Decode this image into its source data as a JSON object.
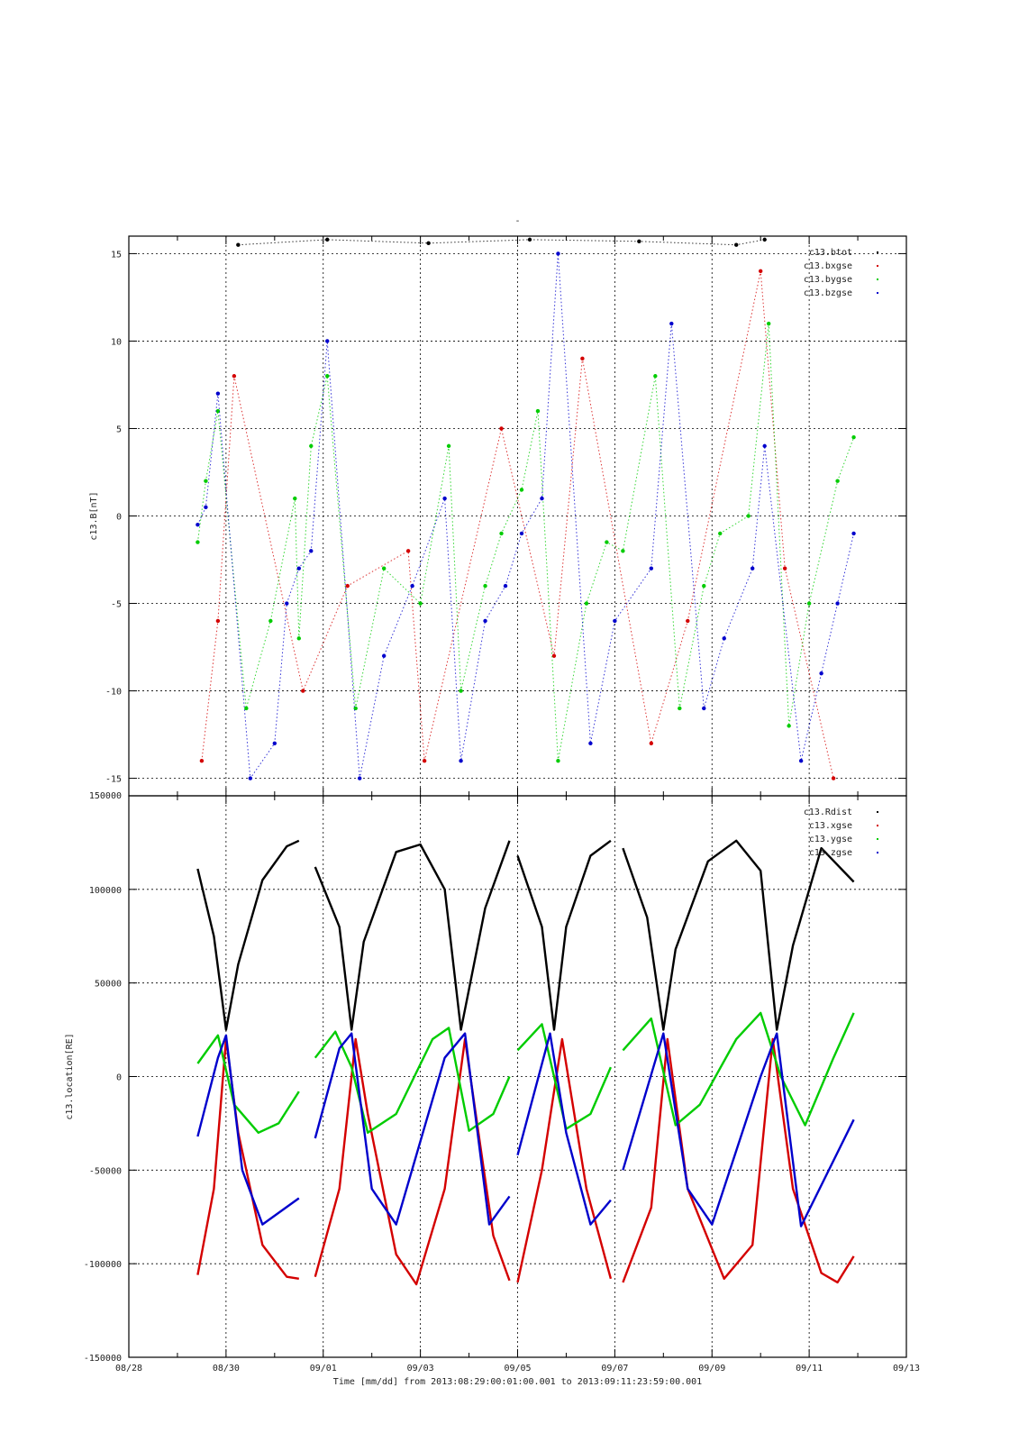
{
  "chart_data": [
    {
      "type": "scatter",
      "title": "-",
      "ylabel": "c13.B[nT]",
      "xlim": [
        "2013-08-28",
        "2013-09-13"
      ],
      "ylim": [
        -16,
        16
      ],
      "y_ticks": [
        15,
        10,
        5,
        0,
        -5,
        -10,
        -15
      ],
      "y_tick_labels": [
        "15",
        "10",
        "5",
        "0",
        "-5",
        "-10",
        "-15"
      ],
      "grid": true,
      "legend_position": "top-right",
      "colors": {
        "btot": "#000000",
        "bxgse": "#d40000",
        "bygse": "#00cc00",
        "bzgse": "#0000cc"
      },
      "series": [
        {
          "name": "c13.btot",
          "color": "#000000",
          "x": [
            "2013-08-30T06:00",
            "2013-09-01T02:00",
            "2013-09-03T04:00",
            "2013-09-05T06:00",
            "2013-09-07T12:00",
            "2013-09-09T12:00",
            "2013-09-10T02:00"
          ],
          "y": [
            15.5,
            15.8,
            15.6,
            15.8,
            15.7,
            15.5,
            15.8
          ]
        },
        {
          "name": "c13.bxgse",
          "color": "#d40000",
          "x": [
            "2013-08-29T12:00",
            "2013-08-29T20:00",
            "2013-08-30T04:00",
            "2013-08-31T14:00",
            "2013-09-01T12:00",
            "2013-09-02T18:00",
            "2013-09-03T02:00",
            "2013-09-04T16:00",
            "2013-09-05T18:00",
            "2013-09-06T08:00",
            "2013-09-07T18:00",
            "2013-09-08T12:00",
            "2013-09-10T00:00",
            "2013-09-10T12:00",
            "2013-09-11T12:00"
          ],
          "y": [
            -14,
            -6,
            8,
            -10,
            -4,
            -2,
            -14,
            5,
            -8,
            9,
            -13,
            -6,
            14,
            -3,
            -15
          ]
        },
        {
          "name": "c13.bygse",
          "color": "#00cc00",
          "x": [
            "2013-08-29T10:00",
            "2013-08-29T14:00",
            "2013-08-29T20:00",
            "2013-08-30T10:00",
            "2013-08-30T22:00",
            "2013-08-31T10:00",
            "2013-08-31T12:00",
            "2013-08-31T18:00",
            "2013-09-01T02:00",
            "2013-09-01T16:00",
            "2013-09-02T06:00",
            "2013-09-03T00:00",
            "2013-09-03T14:00",
            "2013-09-03T20:00",
            "2013-09-04T08:00",
            "2013-09-04T16:00",
            "2013-09-05T02:00",
            "2013-09-05T10:00",
            "2013-09-05T20:00",
            "2013-09-06T10:00",
            "2013-09-06T20:00",
            "2013-09-07T04:00",
            "2013-09-07T20:00",
            "2013-09-08T08:00",
            "2013-09-08T20:00",
            "2013-09-09T04:00",
            "2013-09-09T18:00",
            "2013-09-10T04:00",
            "2013-09-10T14:00",
            "2013-09-11T00:00",
            "2013-09-11T14:00",
            "2013-09-11T22:00"
          ],
          "y": [
            -1.5,
            2,
            6,
            -11,
            -6,
            1,
            -7,
            4,
            8,
            -11,
            -3,
            -5,
            4,
            -10,
            -4,
            -1,
            1.5,
            6,
            -14,
            -5,
            -1.5,
            -2,
            8,
            -11,
            -4,
            -1,
            0,
            11,
            -12,
            -5,
            2,
            4.5
          ]
        },
        {
          "name": "c13.bzgse",
          "color": "#0000cc",
          "x": [
            "2013-08-29T10:00",
            "2013-08-29T14:00",
            "2013-08-29T20:00",
            "2013-08-30T12:00",
            "2013-08-31T00:00",
            "2013-08-31T06:00",
            "2013-08-31T12:00",
            "2013-08-31T18:00",
            "2013-09-01T02:00",
            "2013-09-01T18:00",
            "2013-09-02T06:00",
            "2013-09-02T20:00",
            "2013-09-03T12:00",
            "2013-09-03T20:00",
            "2013-09-04T08:00",
            "2013-09-04T18:00",
            "2013-09-05T02:00",
            "2013-09-05T12:00",
            "2013-09-05T20:00",
            "2013-09-06T12:00",
            "2013-09-07T00:00",
            "2013-09-07T18:00",
            "2013-09-08T04:00",
            "2013-09-08T20:00",
            "2013-09-09T06:00",
            "2013-09-09T20:00",
            "2013-09-10T02:00",
            "2013-09-10T20:00",
            "2013-09-11T06:00",
            "2013-09-11T14:00",
            "2013-09-11T22:00"
          ],
          "y": [
            -0.5,
            0.5,
            7,
            -15,
            -13,
            -5,
            -3,
            -2,
            10,
            -15,
            -8,
            -4,
            1,
            -14,
            -6,
            -4,
            -1,
            1,
            15,
            -13,
            -6,
            -3,
            11,
            -11,
            -7,
            -3,
            4,
            -14,
            -9,
            -5,
            -1
          ]
        }
      ]
    },
    {
      "type": "line",
      "ylabel": "c13.location[RE]",
      "xlabel": "Time [mm/dd]  from 2013:08:29:00:01:00.001  to  2013:09:11:23:59:00.001",
      "xlim": [
        "2013-08-28",
        "2013-09-13"
      ],
      "ylim": [
        -150000,
        150000
      ],
      "x_ticks": [
        "2013-08-28",
        "2013-08-30",
        "2013-09-01",
        "2013-09-03",
        "2013-09-05",
        "2013-09-07",
        "2013-09-09",
        "2013-09-11",
        "2013-09-13"
      ],
      "x_tick_labels": [
        "08/28",
        "08/30",
        "09/01",
        "09/03",
        "09/05",
        "09/07",
        "09/09",
        "09/11",
        "09/13"
      ],
      "y_ticks": [
        150000,
        100000,
        50000,
        0,
        -50000,
        -100000,
        -150000
      ],
      "y_tick_labels": [
        "150000",
        "100000",
        "50000",
        "0",
        "-50000",
        "-100000",
        "-150000"
      ],
      "grid": true,
      "legend_position": "top-right",
      "colors": {
        "Rdist": "#000000",
        "xgse": "#d40000",
        "ygse": "#00cc00",
        "zgse": "#0000cc"
      },
      "series": [
        {
          "name": "c13.Rdist",
          "color": "#000000",
          "x": [
            "2013-08-29T10:00",
            "2013-08-29T18:00",
            "2013-08-30T00:00",
            "2013-08-30T06:00",
            "2013-08-30T18:00",
            "2013-08-31T06:00",
            "2013-08-31T12:00",
            null,
            "2013-08-31T20:00",
            "2013-09-01T08:00",
            "2013-09-01T14:00",
            "2013-09-01T20:00",
            "2013-09-02T12:00",
            "2013-09-03T00:00",
            "2013-09-03T12:00",
            "2013-09-03T20:00",
            "2013-09-04T08:00",
            "2013-09-04T20:00",
            null,
            "2013-09-05T00:00",
            "2013-09-05T12:00",
            "2013-09-05T18:00",
            "2013-09-06T00:00",
            "2013-09-06T12:00",
            "2013-09-06T22:00",
            null,
            "2013-09-07T04:00",
            "2013-09-07T16:00",
            "2013-09-08T00:00",
            "2013-09-08T06:00",
            "2013-09-08T22:00",
            "2013-09-09T12:00",
            "2013-09-10T00:00",
            "2013-09-10T08:00",
            "2013-09-10T16:00",
            "2013-09-11T06:00",
            "2013-09-11T22:00"
          ],
          "y": [
            111000,
            75000,
            25000,
            60000,
            105000,
            123000,
            126000,
            null,
            112000,
            80000,
            25000,
            72000,
            120000,
            124000,
            100000,
            25000,
            90000,
            126000,
            null,
            118000,
            80000,
            25000,
            80000,
            118000,
            126000,
            null,
            122000,
            85000,
            25000,
            68000,
            115000,
            126000,
            110000,
            25000,
            70000,
            122000,
            104000
          ]
        },
        {
          "name": "c13.xgse",
          "color": "#d40000",
          "x": [
            "2013-08-29T10:00",
            "2013-08-29T18:00",
            "2013-08-30T00:00",
            "2013-08-30T06:00",
            "2013-08-30T18:00",
            "2013-08-31T06:00",
            "2013-08-31T12:00",
            null,
            "2013-08-31T20:00",
            "2013-09-01T08:00",
            "2013-09-01T16:00",
            "2013-09-01T22:00",
            "2013-09-02T12:00",
            "2013-09-02T22:00",
            "2013-09-03T12:00",
            "2013-09-03T22:00",
            "2013-09-04T12:00",
            "2013-09-04T20:00",
            null,
            "2013-09-05T00:00",
            "2013-09-05T12:00",
            "2013-09-05T22:00",
            "2013-09-06T10:00",
            "2013-09-06T22:00",
            null,
            "2013-09-07T04:00",
            "2013-09-07T18:00",
            "2013-09-08T02:00",
            "2013-09-08T12:00",
            "2013-09-09T06:00",
            "2013-09-09T20:00",
            "2013-09-10T06:00",
            "2013-09-10T16:00",
            "2013-09-11T06:00",
            "2013-09-11T14:00",
            "2013-09-11T22:00"
          ],
          "y": [
            -106000,
            -60000,
            20000,
            -30000,
            -90000,
            -107000,
            -108000,
            null,
            -107000,
            -60000,
            20000,
            -20000,
            -95000,
            -111000,
            -60000,
            20000,
            -85000,
            -109000,
            null,
            -110000,
            -50000,
            20000,
            -60000,
            -108000,
            null,
            -110000,
            -70000,
            20000,
            -60000,
            -108000,
            -90000,
            20000,
            -60000,
            -105000,
            -110000,
            -96000
          ]
        },
        {
          "name": "c13.ygse",
          "color": "#00cc00",
          "x": [
            "2013-08-29T10:00",
            "2013-08-29T20:00",
            "2013-08-30T04:00",
            "2013-08-30T16:00",
            "2013-08-31T02:00",
            "2013-08-31T12:00",
            null,
            "2013-08-31T20:00",
            "2013-09-01T06:00",
            "2013-09-01T14:00",
            "2013-09-01T22:00",
            "2013-09-02T12:00",
            "2013-09-03T06:00",
            "2013-09-03T14:00",
            "2013-09-04T00:00",
            "2013-09-04T12:00",
            "2013-09-04T20:00",
            null,
            "2013-09-05T00:00",
            "2013-09-05T12:00",
            "2013-09-06T00:00",
            "2013-09-06T12:00",
            "2013-09-06T22:00",
            null,
            "2013-09-07T04:00",
            "2013-09-07T18:00",
            "2013-09-08T06:00",
            "2013-09-08T18:00",
            "2013-09-09T12:00",
            "2013-09-10T00:00",
            "2013-09-10T10:00",
            "2013-09-10T22:00",
            "2013-09-11T12:00",
            "2013-09-11T22:00"
          ],
          "y": [
            7000,
            22000,
            -15000,
            -30000,
            -25000,
            -8000,
            null,
            10000,
            24000,
            5000,
            -30000,
            -20000,
            20000,
            26000,
            -29000,
            -20000,
            0,
            null,
            14000,
            28000,
            -28000,
            -20000,
            5000,
            null,
            14000,
            31000,
            -26000,
            -15000,
            20000,
            34000,
            0,
            -26000,
            10000,
            34000
          ]
        },
        {
          "name": "c13.zgse",
          "color": "#0000cc",
          "x": [
            "2013-08-29T10:00",
            "2013-08-29T20:00",
            "2013-08-30T00:00",
            "2013-08-30T08:00",
            "2013-08-30T18:00",
            "2013-08-31T12:00",
            null,
            "2013-08-31T20:00",
            "2013-09-01T08:00",
            "2013-09-01T14:00",
            "2013-09-02T00:00",
            "2013-09-02T12:00",
            "2013-09-03T12:00",
            "2013-09-03T22:00",
            "2013-09-04T10:00",
            "2013-09-04T20:00",
            null,
            "2013-09-05T00:00",
            "2013-09-05T16:00",
            "2013-09-06T00:00",
            "2013-09-06T12:00",
            "2013-09-06T22:00",
            null,
            "2013-09-07T04:00",
            "2013-09-08T00:00",
            "2013-09-08T12:00",
            "2013-09-09T00:00",
            "2013-09-10T00:00",
            "2013-09-10T08:00",
            "2013-09-10T20:00",
            "2013-09-11T22:00"
          ],
          "y": [
            -32000,
            10000,
            22000,
            -50000,
            -79000,
            -65000,
            null,
            -33000,
            15000,
            23000,
            -60000,
            -79000,
            10000,
            23000,
            -79000,
            -64000,
            null,
            -42000,
            23000,
            -30000,
            -79000,
            -66000,
            null,
            -50000,
            23000,
            -60000,
            -79000,
            0,
            23000,
            -80000,
            -23000
          ]
        }
      ]
    }
  ]
}
